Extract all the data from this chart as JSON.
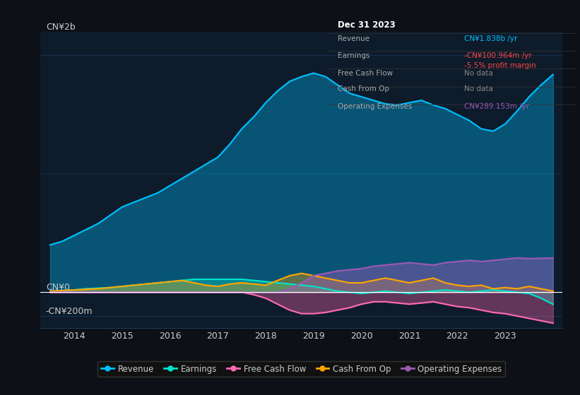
{
  "bg_color": "#0d1117",
  "plot_bg_color": "#0d1b2a",
  "grid_color": "#1e3a5f",
  "text_color": "#cccccc",
  "title_color": "#ffffff",
  "ylabel_cn2b": "CN¥2b",
  "ylabel_cn0": "CN¥0",
  "ylabel_cn200m": "-CN¥200m",
  "x_ticks": [
    2013.5,
    2014,
    2015,
    2016,
    2017,
    2018,
    2019,
    2020,
    2021,
    2022,
    2023,
    2024
  ],
  "x_tick_labels": [
    "",
    "2014",
    "2015",
    "2016",
    "2017",
    "2018",
    "2019",
    "2020",
    "2021",
    "2022",
    "2023",
    ""
  ],
  "xlim": [
    2013.3,
    2024.2
  ],
  "ylim": [
    -300,
    2200
  ],
  "revenue_color": "#00bfff",
  "earnings_color": "#00e5cc",
  "fcf_color": "#ff69b4",
  "cashfromop_color": "#ffa500",
  "opex_color": "#9b59b6",
  "legend_items": [
    "Revenue",
    "Earnings",
    "Free Cash Flow",
    "Cash From Op",
    "Operating Expenses"
  ],
  "tooltip": {
    "date": "Dec 31 2023",
    "revenue": "CN¥1.838b /yr",
    "earnings": "-CN¥100.964m /yr",
    "profit_margin": "-5.5% profit margin",
    "fcf": "No data",
    "cashfromop": "No data",
    "opex": "CN¥289.153m /yr"
  },
  "revenue": {
    "years": [
      2013.5,
      2013.75,
      2014.0,
      2014.25,
      2014.5,
      2014.75,
      2015.0,
      2015.25,
      2015.5,
      2015.75,
      2016.0,
      2016.25,
      2016.5,
      2016.75,
      2017.0,
      2017.25,
      2017.5,
      2017.75,
      2018.0,
      2018.25,
      2018.5,
      2018.75,
      2019.0,
      2019.25,
      2019.5,
      2019.75,
      2020.0,
      2020.25,
      2020.5,
      2020.75,
      2021.0,
      2021.25,
      2021.5,
      2021.75,
      2022.0,
      2022.25,
      2022.5,
      2022.75,
      2023.0,
      2023.25,
      2023.5,
      2023.75,
      2024.0
    ],
    "values": [
      400,
      430,
      480,
      530,
      580,
      650,
      720,
      760,
      800,
      840,
      900,
      960,
      1020,
      1080,
      1140,
      1250,
      1380,
      1480,
      1600,
      1700,
      1780,
      1820,
      1850,
      1820,
      1750,
      1680,
      1650,
      1620,
      1590,
      1580,
      1600,
      1620,
      1580,
      1550,
      1500,
      1450,
      1380,
      1360,
      1420,
      1530,
      1650,
      1750,
      1838
    ]
  },
  "earnings": {
    "years": [
      2013.5,
      2013.75,
      2014.0,
      2014.25,
      2014.5,
      2014.75,
      2015.0,
      2015.25,
      2015.5,
      2015.75,
      2016.0,
      2016.25,
      2016.5,
      2016.75,
      2017.0,
      2017.25,
      2017.5,
      2017.75,
      2018.0,
      2018.25,
      2018.5,
      2018.75,
      2019.0,
      2019.25,
      2019.5,
      2019.75,
      2020.0,
      2020.25,
      2020.5,
      2020.75,
      2021.0,
      2021.25,
      2021.5,
      2021.75,
      2022.0,
      2022.25,
      2022.5,
      2022.75,
      2023.0,
      2023.25,
      2023.5,
      2023.75,
      2024.0
    ],
    "values": [
      10,
      15,
      20,
      30,
      35,
      40,
      50,
      60,
      70,
      80,
      90,
      100,
      110,
      110,
      110,
      110,
      110,
      100,
      90,
      80,
      70,
      60,
      50,
      30,
      10,
      0,
      -10,
      0,
      10,
      0,
      -10,
      0,
      10,
      20,
      10,
      0,
      10,
      20,
      10,
      0,
      -10,
      -50,
      -101
    ]
  },
  "fcf": {
    "years": [
      2013.5,
      2013.75,
      2014.0,
      2014.25,
      2014.5,
      2014.75,
      2015.0,
      2015.25,
      2015.5,
      2015.75,
      2016.0,
      2016.25,
      2016.5,
      2016.75,
      2017.0,
      2017.25,
      2017.5,
      2017.75,
      2018.0,
      2018.25,
      2018.5,
      2018.75,
      2019.0,
      2019.25,
      2019.5,
      2019.75,
      2020.0,
      2020.25,
      2020.5,
      2020.75,
      2021.0,
      2021.25,
      2021.5,
      2021.75,
      2022.0,
      2022.25,
      2022.5,
      2022.75,
      2023.0,
      2023.25,
      2023.5,
      2023.75,
      2024.0
    ],
    "values": [
      0,
      0,
      0,
      0,
      0,
      0,
      0,
      0,
      0,
      0,
      0,
      0,
      0,
      0,
      0,
      0,
      0,
      -20,
      -50,
      -100,
      -150,
      -180,
      -180,
      -170,
      -150,
      -130,
      -100,
      -80,
      -80,
      -90,
      -100,
      -90,
      -80,
      -100,
      -120,
      -130,
      -150,
      -170,
      -180,
      -200,
      -220,
      -240,
      -260
    ]
  },
  "cashfromop": {
    "years": [
      2013.5,
      2013.75,
      2014.0,
      2014.25,
      2014.5,
      2014.75,
      2015.0,
      2015.25,
      2015.5,
      2015.75,
      2016.0,
      2016.25,
      2016.5,
      2016.75,
      2017.0,
      2017.25,
      2017.5,
      2017.75,
      2018.0,
      2018.25,
      2018.5,
      2018.75,
      2019.0,
      2019.25,
      2019.5,
      2019.75,
      2020.0,
      2020.25,
      2020.5,
      2020.75,
      2021.0,
      2021.25,
      2021.5,
      2021.75,
      2022.0,
      2022.25,
      2022.5,
      2022.75,
      2023.0,
      2023.25,
      2023.5,
      2023.75,
      2024.0
    ],
    "values": [
      10,
      15,
      20,
      25,
      30,
      40,
      50,
      60,
      70,
      80,
      90,
      100,
      80,
      60,
      50,
      70,
      80,
      70,
      60,
      100,
      140,
      160,
      140,
      120,
      100,
      80,
      80,
      100,
      120,
      100,
      80,
      100,
      120,
      80,
      60,
      50,
      60,
      30,
      40,
      30,
      50,
      30,
      10
    ]
  },
  "opex": {
    "years": [
      2013.5,
      2013.75,
      2014.0,
      2014.25,
      2014.5,
      2014.75,
      2015.0,
      2015.25,
      2015.5,
      2015.75,
      2016.0,
      2016.25,
      2016.5,
      2016.75,
      2017.0,
      2017.25,
      2017.5,
      2017.75,
      2018.0,
      2018.25,
      2018.5,
      2018.75,
      2019.0,
      2019.25,
      2019.5,
      2019.75,
      2020.0,
      2020.25,
      2020.5,
      2020.75,
      2021.0,
      2021.25,
      2021.5,
      2021.75,
      2022.0,
      2022.25,
      2022.5,
      2022.75,
      2023.0,
      2023.25,
      2023.5,
      2023.75,
      2024.0
    ],
    "values": [
      0,
      0,
      0,
      0,
      0,
      0,
      0,
      0,
      0,
      0,
      0,
      0,
      0,
      0,
      0,
      0,
      0,
      0,
      0,
      0,
      30,
      80,
      140,
      160,
      180,
      190,
      200,
      220,
      230,
      240,
      250,
      240,
      230,
      250,
      260,
      270,
      260,
      270,
      280,
      290,
      285,
      287,
      289
    ]
  }
}
